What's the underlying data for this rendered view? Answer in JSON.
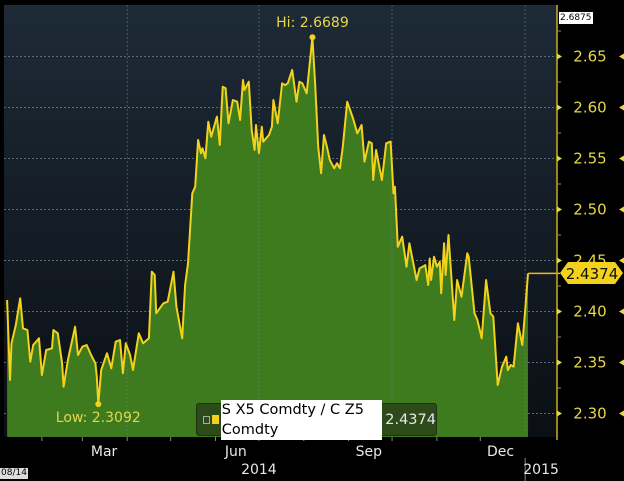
{
  "chart_data": {
    "type": "area",
    "title": "",
    "xlabel": "",
    "ylabel": "",
    "ylim": [
      2.28,
      2.69
    ],
    "y_ticks": [
      "2.30",
      "2.35",
      "2.40",
      "2.45",
      "2.50",
      "2.55",
      "2.60",
      "2.65"
    ],
    "y_axis_side": "right",
    "grid": true,
    "x_month_labels": [
      {
        "label": "Mar",
        "date": "2014-03-16"
      },
      {
        "label": "Jun",
        "date": "2014-06-15"
      },
      {
        "label": "Sep",
        "date": "2014-09-15"
      },
      {
        "label": "Dec",
        "date": "2014-12-15"
      }
    ],
    "x_year_labels": [
      {
        "label": "2014",
        "date": "2014-07-01"
      },
      {
        "label": "2015",
        "date": "2015-01-12"
      }
    ],
    "series": [
      {
        "name": "S X5 Comdty / C Z5 Comdty",
        "color": "#f2d21c",
        "fill": "#3e7a1e",
        "points": [
          [
            "2014-01-08",
            2.4113
          ],
          [
            "2014-01-10",
            2.3328
          ],
          [
            "2014-01-11",
            2.3688
          ],
          [
            "2014-01-14",
            2.3868
          ],
          [
            "2014-01-17",
            2.4129
          ],
          [
            "2014-01-19",
            2.3835
          ],
          [
            "2014-01-22",
            2.3819
          ],
          [
            "2014-01-24",
            2.3508
          ],
          [
            "2014-01-26",
            2.3672
          ],
          [
            "2014-01-30",
            2.3737
          ],
          [
            "2014-02-01",
            2.3377
          ],
          [
            "2014-02-04",
            2.3623
          ],
          [
            "2014-02-08",
            2.3639
          ],
          [
            "2014-02-09",
            2.3819
          ],
          [
            "2014-02-12",
            2.3786
          ],
          [
            "2014-02-15",
            2.3492
          ],
          [
            "2014-02-16",
            2.3263
          ],
          [
            "2014-02-19",
            2.3525
          ],
          [
            "2014-02-24",
            2.3851
          ],
          [
            "2014-02-26",
            2.3574
          ],
          [
            "2014-03-01",
            2.3655
          ],
          [
            "2014-03-04",
            2.3672
          ],
          [
            "2014-03-07",
            2.3574
          ],
          [
            "2014-03-10",
            2.3492
          ],
          [
            "2014-03-11",
            2.3361
          ],
          [
            "2014-03-12",
            2.3092
          ],
          [
            "2014-03-14",
            2.3426
          ],
          [
            "2014-03-18",
            2.359
          ],
          [
            "2014-03-21",
            2.3443
          ],
          [
            "2014-03-24",
            2.3704
          ],
          [
            "2014-03-27",
            2.3721
          ],
          [
            "2014-03-29",
            2.3394
          ],
          [
            "2014-03-31",
            2.3688
          ],
          [
            "2014-04-03",
            2.3574
          ],
          [
            "2014-04-05",
            2.3426
          ],
          [
            "2014-04-09",
            2.3786
          ],
          [
            "2014-04-12",
            2.3688
          ],
          [
            "2014-04-16",
            2.3737
          ],
          [
            "2014-04-18",
            2.439
          ],
          [
            "2014-04-20",
            2.4358
          ],
          [
            "2014-04-21",
            2.3982
          ],
          [
            "2014-04-26",
            2.408
          ],
          [
            "2014-04-29",
            2.4096
          ],
          [
            "2014-05-03",
            2.439
          ],
          [
            "2014-05-05",
            2.4047
          ],
          [
            "2014-05-09",
            2.3737
          ],
          [
            "2014-05-11",
            2.426
          ],
          [
            "2014-05-13",
            2.4472
          ],
          [
            "2014-05-16",
            2.5159
          ],
          [
            "2014-05-18",
            2.5224
          ],
          [
            "2014-05-20",
            2.5681
          ],
          [
            "2014-05-22",
            2.5551
          ],
          [
            "2014-05-23",
            2.56
          ],
          [
            "2014-05-25",
            2.5502
          ],
          [
            "2014-05-27",
            2.5861
          ],
          [
            "2014-05-29",
            2.5714
          ],
          [
            "2014-06-02",
            2.591
          ],
          [
            "2014-06-04",
            2.5632
          ],
          [
            "2014-06-06",
            2.6204
          ],
          [
            "2014-06-08",
            2.6188
          ],
          [
            "2014-06-10",
            2.5845
          ],
          [
            "2014-06-13",
            2.6074
          ],
          [
            "2014-06-16",
            2.6057
          ],
          [
            "2014-06-18",
            2.5877
          ],
          [
            "2014-06-20",
            2.627
          ],
          [
            "2014-06-21",
            2.6172
          ],
          [
            "2014-06-24",
            2.6253
          ],
          [
            "2014-06-26",
            2.5779
          ],
          [
            "2014-06-28",
            2.5583
          ],
          [
            "2014-06-29",
            2.5828
          ],
          [
            "2014-07-01",
            2.5551
          ],
          [
            "2014-07-03",
            2.5812
          ],
          [
            "2014-07-04",
            2.5665
          ],
          [
            "2014-07-08",
            2.573
          ],
          [
            "2014-07-10",
            2.5812
          ],
          [
            "2014-07-11",
            2.6074
          ],
          [
            "2014-07-14",
            2.5845
          ],
          [
            "2014-07-17",
            2.6237
          ],
          [
            "2014-07-19",
            2.622
          ],
          [
            "2014-07-21",
            2.6237
          ],
          [
            "2014-07-24",
            2.6368
          ],
          [
            "2014-07-27",
            2.6057
          ],
          [
            "2014-07-29",
            2.6253
          ],
          [
            "2014-07-31",
            2.6237
          ],
          [
            "2014-08-03",
            2.6139
          ],
          [
            "2014-08-07",
            2.6689
          ],
          [
            "2014-08-09",
            2.6204
          ],
          [
            "2014-08-11",
            2.5616
          ],
          [
            "2014-08-13",
            2.5355
          ],
          [
            "2014-08-15",
            2.573
          ],
          [
            "2014-08-17",
            2.5616
          ],
          [
            "2014-08-19",
            2.5485
          ],
          [
            "2014-08-22",
            2.5404
          ],
          [
            "2014-08-24",
            2.5453
          ],
          [
            "2014-08-26",
            2.5404
          ],
          [
            "2014-08-28",
            2.5616
          ],
          [
            "2014-08-31",
            2.6057
          ],
          [
            "2014-09-02",
            2.5975
          ],
          [
            "2014-09-04",
            2.5894
          ],
          [
            "2014-09-07",
            2.5747
          ],
          [
            "2014-09-10",
            2.5828
          ],
          [
            "2014-09-12",
            2.5469
          ],
          [
            "2014-09-15",
            2.5665
          ],
          [
            "2014-09-17",
            2.5649
          ],
          [
            "2014-09-18",
            2.5289
          ],
          [
            "2014-09-20",
            2.5583
          ],
          [
            "2014-09-24",
            2.5289
          ],
          [
            "2014-09-27",
            2.5649
          ],
          [
            "2014-09-30",
            2.5666
          ],
          [
            "2014-10-02",
            2.5159
          ],
          [
            "2014-10-03",
            2.5224
          ],
          [
            "2014-10-05",
            2.4635
          ],
          [
            "2014-10-08",
            2.4733
          ],
          [
            "2014-10-11",
            2.4439
          ],
          [
            "2014-10-13",
            2.4669
          ],
          [
            "2014-10-18",
            2.4309
          ],
          [
            "2014-10-20",
            2.4422
          ],
          [
            "2014-10-24",
            2.4455
          ],
          [
            "2014-10-26",
            2.426
          ],
          [
            "2014-10-27",
            2.452
          ],
          [
            "2014-10-28",
            2.4309
          ],
          [
            "2014-10-30",
            2.4537
          ],
          [
            "2014-11-01",
            2.4439
          ],
          [
            "2014-11-03",
            2.4488
          ],
          [
            "2014-11-04",
            2.4178
          ],
          [
            "2014-11-06",
            2.4669
          ],
          [
            "2014-11-07",
            2.4358
          ],
          [
            "2014-11-09",
            2.475
          ],
          [
            "2014-11-13",
            2.3917
          ],
          [
            "2014-11-15",
            2.4309
          ],
          [
            "2014-11-18",
            2.4145
          ],
          [
            "2014-11-22",
            2.4571
          ],
          [
            "2014-11-23",
            2.4537
          ],
          [
            "2014-11-27",
            2.3982
          ],
          [
            "2014-11-29",
            2.3917
          ],
          [
            "2014-12-02",
            2.3737
          ],
          [
            "2014-12-05",
            2.4309
          ],
          [
            "2014-12-08",
            2.3982
          ],
          [
            "2014-12-10",
            2.395
          ],
          [
            "2014-12-13",
            2.3279
          ],
          [
            "2014-12-16",
            2.3459
          ],
          [
            "2014-12-19",
            2.3557
          ],
          [
            "2014-12-20",
            2.3426
          ],
          [
            "2014-12-22",
            2.3475
          ],
          [
            "2014-12-24",
            2.3459
          ],
          [
            "2014-12-27",
            2.3884
          ],
          [
            "2014-12-30",
            2.3672
          ],
          [
            "2015-01-01",
            2.4015
          ],
          [
            "2015-01-03",
            2.4374
          ]
        ]
      }
    ],
    "annotations": {
      "high": {
        "label": "Hi: 2.6689",
        "date": "2014-08-07",
        "value": 2.6689
      },
      "low": {
        "label": "Low: 2.3092",
        "date": "2014-03-12",
        "value": 2.3092
      },
      "last_value": "2.4374",
      "axis_max": "2.6875"
    },
    "legend": {
      "position": "bottom-center",
      "series_label": "S X5 Comdty / C Z5 Comdty",
      "value": "2.4374"
    },
    "date_stamp": "08/14"
  }
}
